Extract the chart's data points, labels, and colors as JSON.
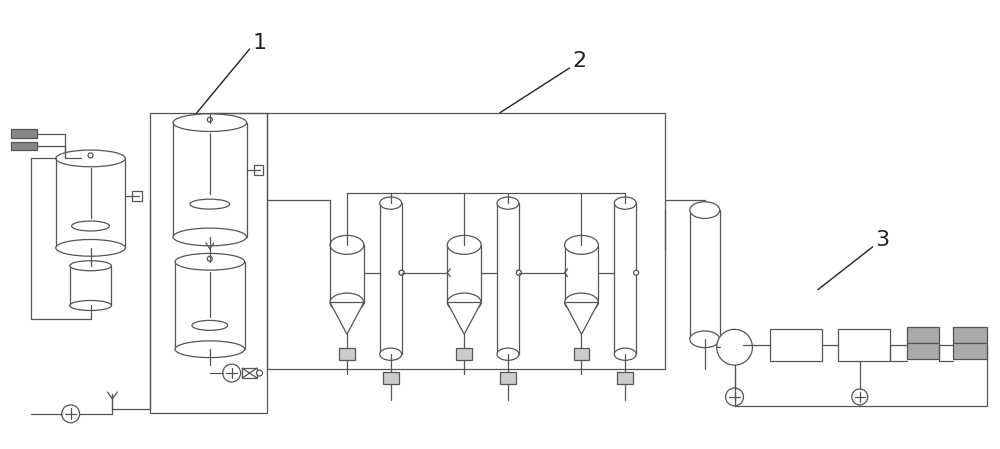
{
  "background_color": "#ffffff",
  "line_color": "#555555",
  "label_color": "#222222",
  "fig_width": 10.0,
  "fig_height": 4.49,
  "label_fontsize": 16
}
